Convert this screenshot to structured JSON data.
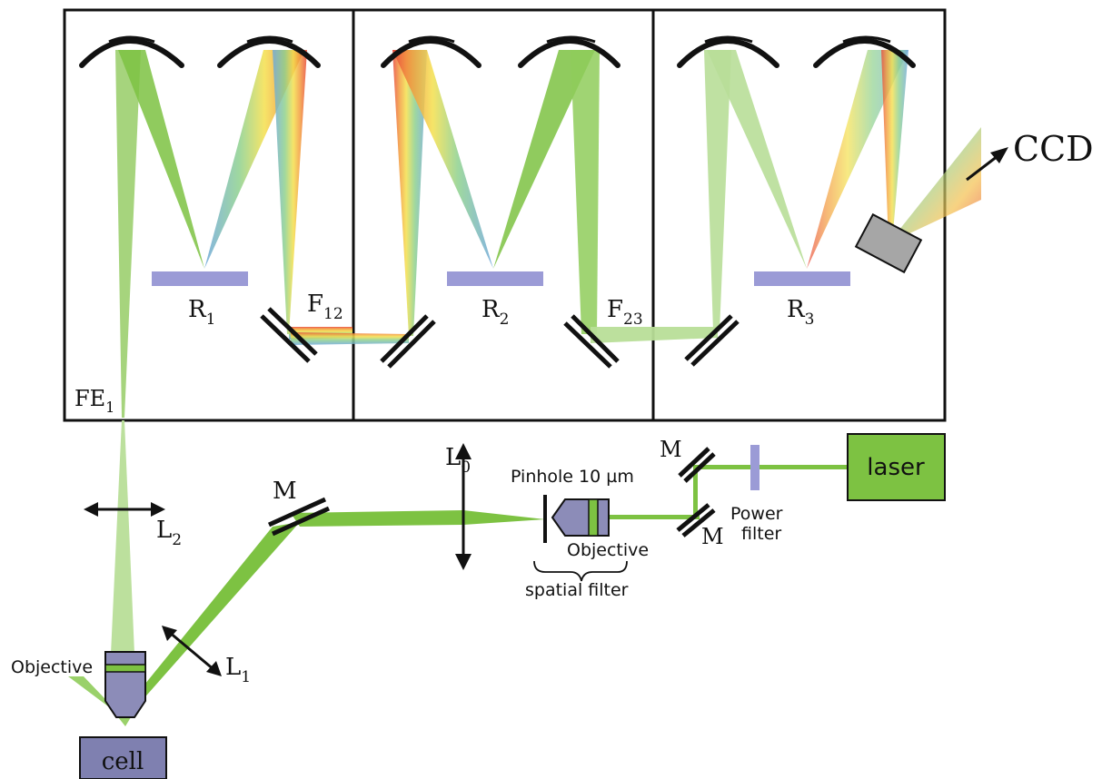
{
  "labels": {
    "ccd": "CCD",
    "r1": "R",
    "r1_sub": "1",
    "r2": "R",
    "r2_sub": "2",
    "r3": "R",
    "r3_sub": "3",
    "f12": "F",
    "f12_sub": "12",
    "f23": "F",
    "f23_sub": "23",
    "fe1": "FE",
    "fe1_sub": "1",
    "l0": "L",
    "l0_sub": "0",
    "l1": "L",
    "l1_sub": "1",
    "l2": "L",
    "l2_sub": "2",
    "m_top_left": "M",
    "m_right_top": "M",
    "m_right_bottom": "M",
    "pinhole": "Pinhole 10 µm",
    "objective_spatial": "Objective",
    "spatial_filter": "spatial filter",
    "power_filter_line1": "Power",
    "power_filter_line2": "filter",
    "laser": "laser",
    "objective_cell": "Objective",
    "cell": "cell"
  },
  "colors": {
    "beam_green": "#7dc242",
    "beam_light": "#b8de98",
    "grating": "#9b9bd6",
    "laser_box": "#7dc242",
    "objective_body": "#8c8cb8",
    "cell_box": "#7f80b0",
    "ccd_box": "#a6a6a6"
  }
}
